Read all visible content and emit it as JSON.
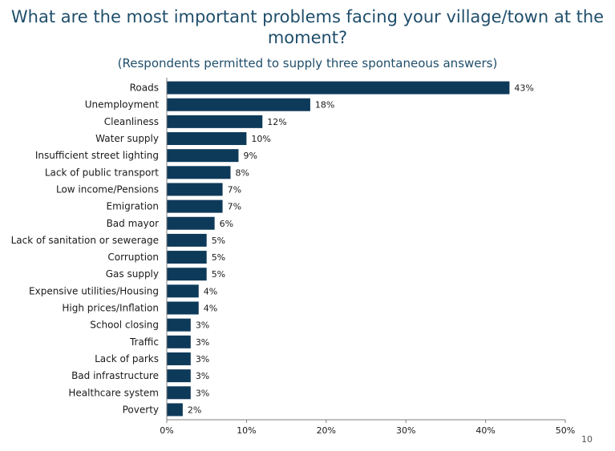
{
  "title": "What are the most important problems facing your village/town at the moment?",
  "subtitle": "(Respondents permitted to supply three spontaneous answers)",
  "page_number": "10",
  "colors": {
    "bar": "#0e3a5a",
    "title": "#1f4e6b",
    "axis": "#7f7f7f"
  },
  "chart_data": {
    "type": "bar",
    "orientation": "horizontal",
    "categories": [
      "Roads",
      "Unemployment",
      "Cleanliness",
      "Water supply",
      "Insufficient street lighting",
      "Lack of public transport",
      "Low income/Pensions",
      "Emigration",
      "Bad mayor",
      "Lack of sanitation or sewerage",
      "Corruption",
      "Gas supply",
      "Expensive utilities/Housing",
      "High prices/Inflation",
      "School closing",
      "Traffic",
      "Lack of parks",
      "Bad infrastructure",
      "Healthcare system",
      "Poverty"
    ],
    "values": [
      43,
      18,
      12,
      10,
      9,
      8,
      7,
      7,
      6,
      5,
      5,
      5,
      4,
      4,
      3,
      3,
      3,
      3,
      3,
      2
    ],
    "value_labels": [
      "43%",
      "18%",
      "12%",
      "10%",
      "9%",
      "8%",
      "7%",
      "7%",
      "6%",
      "5%",
      "5%",
      "5%",
      "4%",
      "4%",
      "3%",
      "3%",
      "3%",
      "3%",
      "3%",
      "2%"
    ],
    "xlim": [
      0,
      50
    ],
    "xticks": [
      0,
      10,
      20,
      30,
      40,
      50
    ],
    "xtick_labels": [
      "0%",
      "10%",
      "20%",
      "30%",
      "40%",
      "50%"
    ],
    "grid": false,
    "legend": false
  }
}
